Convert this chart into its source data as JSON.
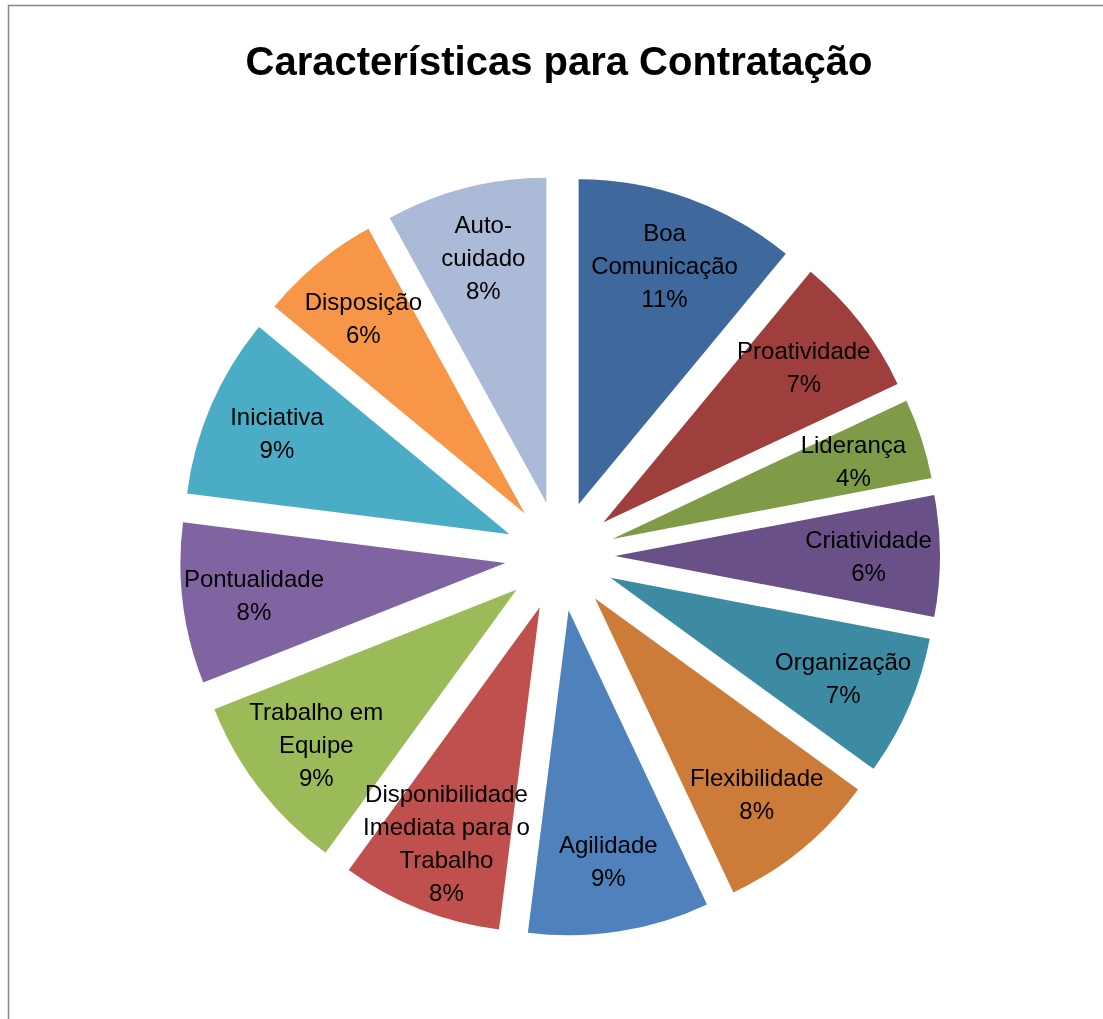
{
  "chart_data": {
    "type": "pie",
    "title": "Características para Contratação",
    "categories": [
      "Boa Comunicação",
      "Proatividade",
      "Liderança",
      "Criatividade",
      "Organização",
      "Flexibilidade",
      "Agilidade",
      "Disponibilidade Imediata para o Trabalho",
      "Trabalho em Equipe",
      "Pontualidade",
      "Iniciativa",
      "Disposição",
      "Auto-cuidado"
    ],
    "values": [
      11,
      7,
      4,
      6,
      7,
      8,
      9,
      8,
      9,
      8,
      9,
      6,
      8
    ],
    "colors": [
      "#3f699c",
      "#9e3f3d",
      "#7f9b48",
      "#695086",
      "#3c8ba3",
      "#cc7b38",
      "#4f81bd",
      "#c0504d",
      "#9bbb59",
      "#8064a2",
      "#4bacc6",
      "#f79646",
      "#aabad7"
    ],
    "value_labels": [
      "11%",
      "7%",
      "4%",
      "6%",
      "7%",
      "8%",
      "9%",
      "8%",
      "9%",
      "8%",
      "9%",
      "6%",
      "8%"
    ]
  }
}
